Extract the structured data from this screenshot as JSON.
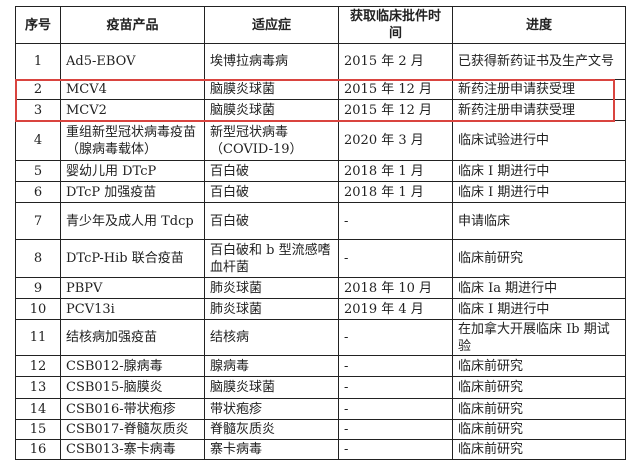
{
  "table": {
    "headers": [
      "序号",
      "疫苗产品",
      "适应症",
      "获取临床批件时间",
      "进度"
    ],
    "rows": [
      [
        "1",
        "Ad5-EBOV",
        "埃博拉病毒病",
        "2015 年 2 月",
        "已获得新药证书及生产文号"
      ],
      [
        "2",
        "MCV4",
        "脑膜炎球菌",
        "2015 年 12 月",
        "新药注册申请获受理"
      ],
      [
        "3",
        "MCV2",
        "脑膜炎球菌",
        "2015 年 12 月",
        "新药注册申请获受理"
      ],
      [
        "4",
        "重组新型冠状病毒疫苗（腺病毒载体）",
        "新型冠状病毒（COVID-19）",
        "2020 年 3 月",
        "临床试验进行中"
      ],
      [
        "5",
        "婴幼儿用 DTcP",
        "百白破",
        "2018 年 1 月",
        "临床 I 期进行中"
      ],
      [
        "6",
        "DTcP 加强疫苗",
        "百白破",
        "2018 年 1 月",
        "临床 I 期进行中"
      ],
      [
        "7",
        "青少年及成人用 Tdcp",
        "百白破",
        "-",
        "申请临床"
      ],
      [
        "8",
        "DTcP-Hib 联合疫苗",
        "百白破和 b 型流感嗜血杆菌",
        "-",
        "临床前研究"
      ],
      [
        "9",
        "PBPV",
        "肺炎球菌",
        "2018 年 10 月",
        "临床 Ia 期进行中"
      ],
      [
        "10",
        "PCV13i",
        "肺炎球菌",
        "2019 年 4 月",
        "临床 I 期进行中"
      ],
      [
        "11",
        "结核病加强疫苗",
        "结核病",
        "-",
        "在加拿大开展临床 Ib 期试验"
      ],
      [
        "12",
        "CSB012-腺病毒",
        "腺病毒",
        "-",
        "临床前研究"
      ],
      [
        "13",
        "CSB015-脑膜炎",
        "脑膜炎球菌",
        "-",
        "临床前研究"
      ],
      [
        "14",
        "CSB016-带状疱疹",
        "带状疱疹",
        "-",
        "临床前研究"
      ],
      [
        "15",
        "CSB017-脊髓灰质炎",
        "脊髓灰质炎",
        "-",
        "临床前研究"
      ],
      [
        "16",
        "CSB013-寨卡病毒",
        "寨卡病毒",
        "-",
        "临床前研究"
      ]
    ]
  },
  "highlight_color": "#d9443f"
}
